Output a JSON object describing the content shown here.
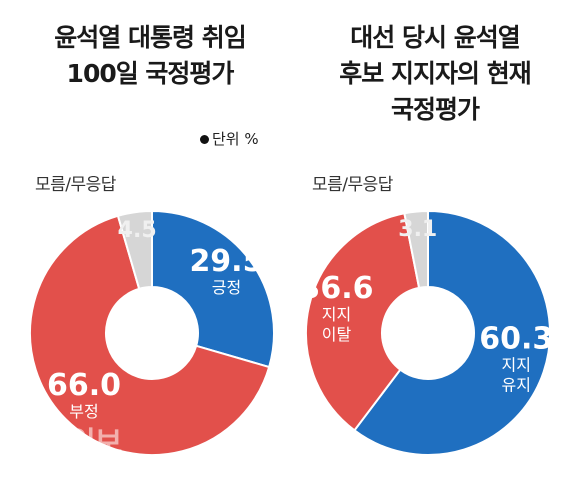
{
  "source_watermark": "한국일보",
  "unit_label": "단위 %",
  "colors": {
    "blue": "#1f6fc0",
    "red": "#e2504b",
    "gray": "#d6d6d6"
  },
  "chart_data": [
    {
      "type": "pie",
      "title": "윤석열 대통령 취임 100일 국정평가",
      "title_lines": [
        "윤석열 대통령 취임",
        "100일 국정평가"
      ],
      "slices": [
        {
          "label": "긍정",
          "value": 29.5,
          "color": "#1f6fc0"
        },
        {
          "label": "부정",
          "value": 66.0,
          "color": "#e2504b"
        },
        {
          "label": "모름/무응답",
          "value": 4.5,
          "color": "#d6d6d6"
        }
      ]
    },
    {
      "type": "pie",
      "title": "대선 당시 윤석열 후보 지지자의 현재 국정평가",
      "title_lines": [
        "대선 당시 윤석열",
        "후보 지지자의 현재",
        "국정평가"
      ],
      "slices": [
        {
          "label": "지지 유지",
          "value": 60.3,
          "color": "#1f6fc0"
        },
        {
          "label": "지지 이탈",
          "value": 36.6,
          "color": "#e2504b"
        },
        {
          "label": "모름/무응답",
          "value": 3.1,
          "color": "#d6d6d6"
        }
      ]
    }
  ]
}
